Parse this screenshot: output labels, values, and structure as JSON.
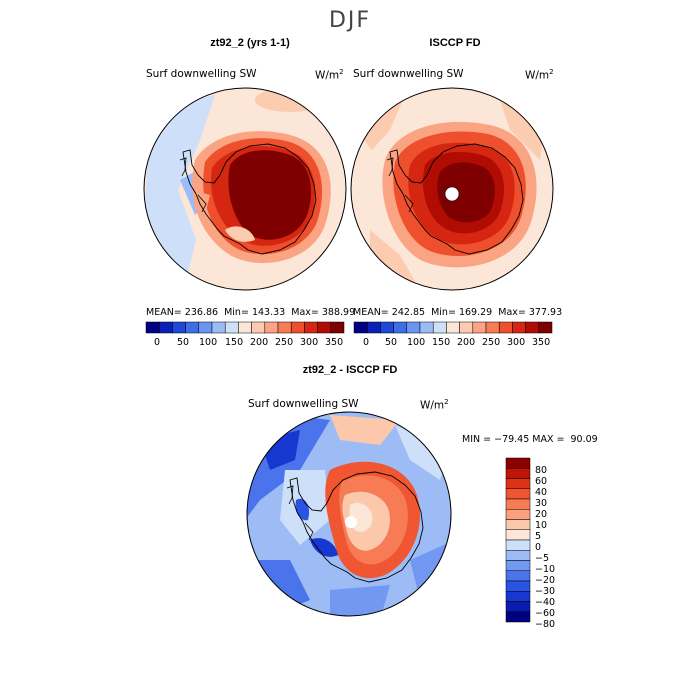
{
  "title": "DJF",
  "panels": [
    {
      "title": "zt92_2 (yrs 1-1)",
      "variable": "Surf downwelling SW",
      "units": "W/m",
      "units_exp": "2",
      "stats": {
        "mean_label": "MEAN=",
        "mean": "236.86",
        "min_label": "Min=",
        "min": "143.33",
        "max_label": "Max=",
        "max": "388.99"
      }
    },
    {
      "title": "ISCCP FD",
      "variable": "Surf downwelling SW",
      "units": "W/m",
      "units_exp": "2",
      "stats": {
        "mean_label": "MEAN=",
        "mean": "242.85",
        "min_label": "Min=",
        "min": "169.29",
        "max_label": "Max=",
        "max": "377.93"
      }
    },
    {
      "title": "zt92_2 - ISCCP FD",
      "variable": "Surf downwelling SW",
      "units": "W/m",
      "units_exp": "2",
      "stats_text": "MIN = −79.45 MAX =  90.09"
    }
  ],
  "colorbar_abs": {
    "colors": [
      "#000080",
      "#0a1fb5",
      "#1f48d9",
      "#3d6ee8",
      "#6b95f0",
      "#9dbcf6",
      "#cddff9",
      "#fbe6d8",
      "#fcccb0",
      "#fba483",
      "#f77b55",
      "#ee4f2c",
      "#d52612",
      "#b10c04",
      "#7f0000"
    ],
    "labels": [
      "0",
      "50",
      "100",
      "150",
      "200",
      "250",
      "300",
      "350"
    ]
  },
  "colorbar_diff": {
    "colors": [
      "#000080",
      "#0a1cb0",
      "#1738d0",
      "#2853e3",
      "#4a73ec",
      "#7298f2",
      "#9dbcf6",
      "#cddff9",
      "#fbe6d8",
      "#fcc8ab",
      "#fba07e",
      "#f77b55",
      "#ef5631",
      "#dc3317",
      "#bf1508",
      "#8b0000"
    ],
    "labels": [
      "80",
      "60",
      "40",
      "30",
      "20",
      "10",
      "5",
      "0",
      "−5",
      "−10",
      "−20",
      "−30",
      "−40",
      "−60",
      "−80"
    ]
  }
}
